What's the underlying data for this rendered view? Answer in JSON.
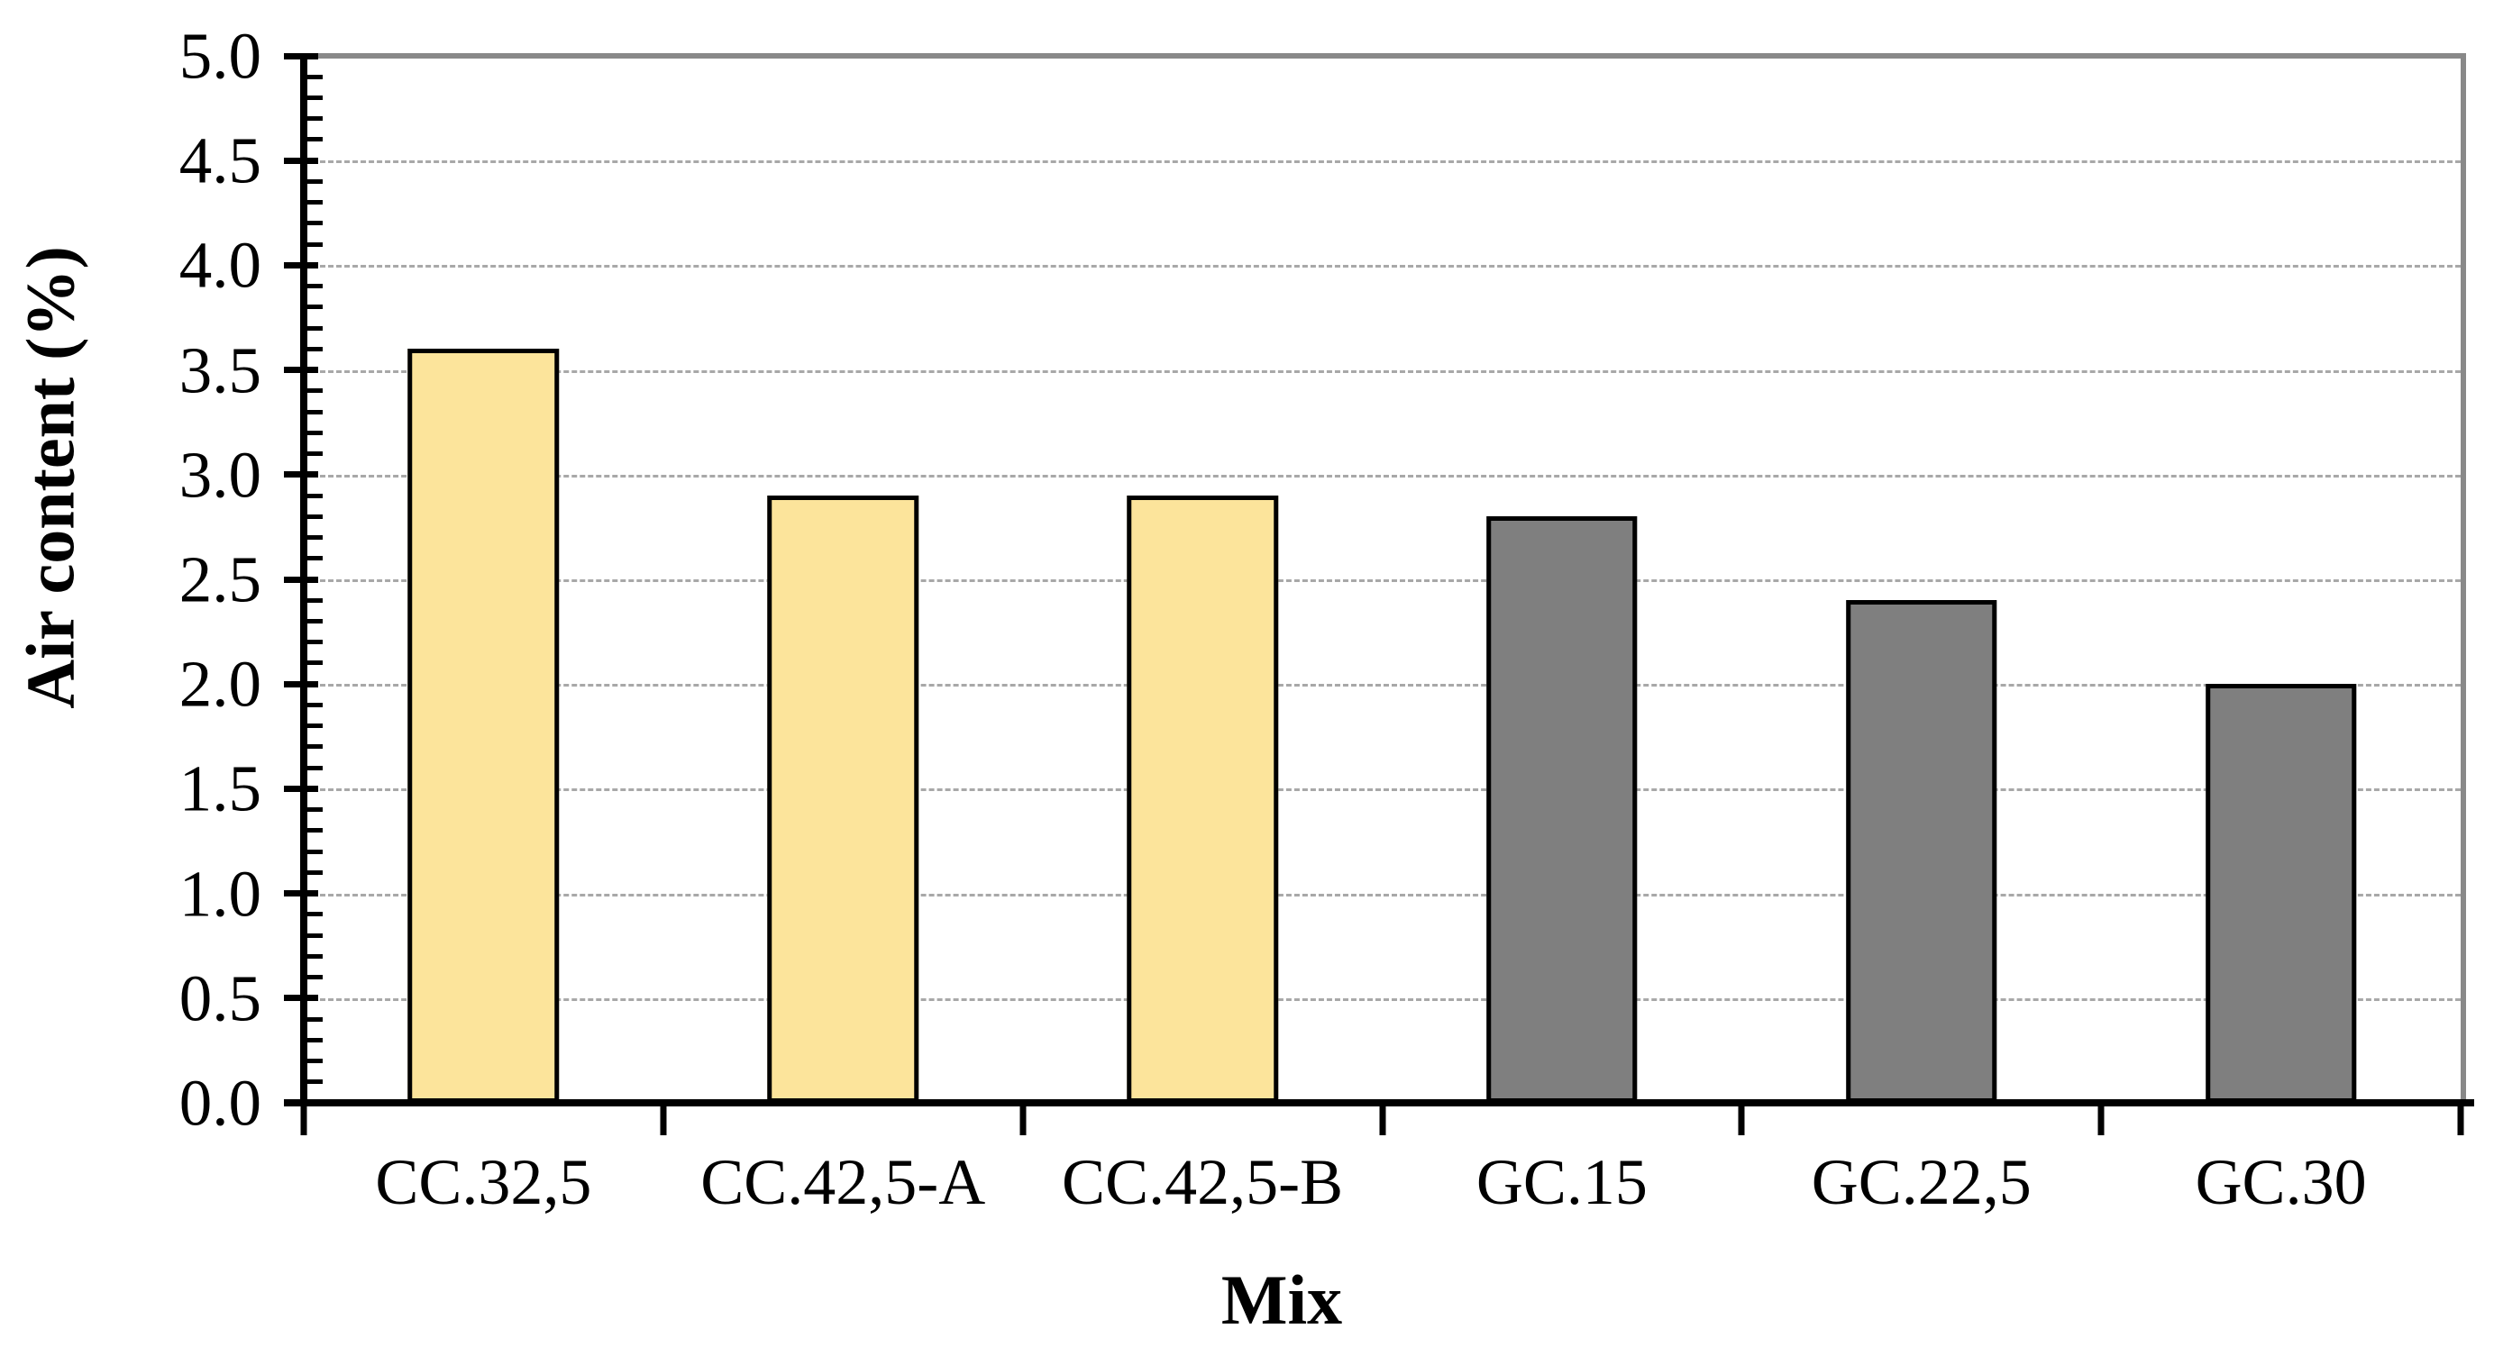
{
  "chart_data": {
    "type": "bar",
    "title": "",
    "xlabel": "Mix",
    "ylabel": "Air content (%)",
    "categories": [
      "CC.32,5",
      "CC.42,5-A",
      "CC.42,5-B",
      "GC.15",
      "GC.22,5",
      "GC.30"
    ],
    "values": [
      3.6,
      2.9,
      2.9,
      2.8,
      2.4,
      2.0
    ],
    "bar_colors": [
      "#fce49b",
      "#fce49b",
      "#fce49b",
      "#7f7f7f",
      "#7f7f7f",
      "#7f7f7f"
    ],
    "ylim": [
      0.0,
      5.0
    ],
    "ytick_step": 0.5,
    "yminor_step": 0.1,
    "ytick_labels": [
      "0.0",
      "0.5",
      "1.0",
      "1.5",
      "2.0",
      "2.5",
      "3.0",
      "3.5",
      "4.0",
      "4.5",
      "5.0"
    ],
    "grid": "horizontal-dashed",
    "legend_position": "none",
    "colors": {
      "bar_outline": "#000000",
      "axis": "#000000",
      "gridline": "#a8a8a8",
      "plot_border": "#898989",
      "background": "#ffffff",
      "text": "#000000"
    }
  }
}
